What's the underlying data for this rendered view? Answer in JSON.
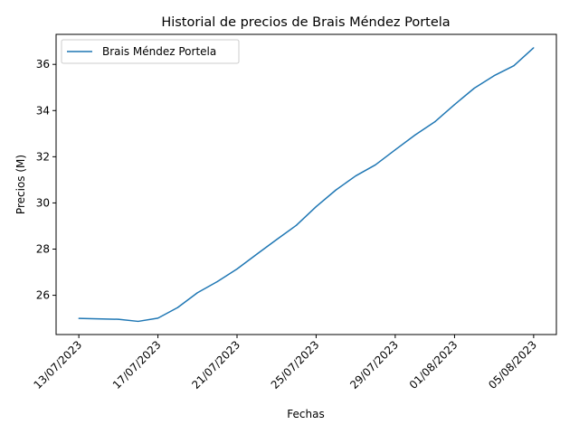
{
  "chart_data": {
    "type": "line",
    "title": "Historial de precios de Brais Méndez Portela",
    "xlabel": "Fechas",
    "ylabel": "Precios (M)",
    "x_tick_labels": [
      "13/07/2023",
      "17/07/2023",
      "21/07/2023",
      "25/07/2023",
      "29/07/2023",
      "01/08/2023",
      "05/08/2023"
    ],
    "x_ticks": [
      "2023-07-13",
      "2023-07-17",
      "2023-07-21",
      "2023-07-25",
      "2023-07-29",
      "2023-08-01",
      "2023-08-05"
    ],
    "y_ticks": [
      26,
      28,
      30,
      32,
      34,
      36
    ],
    "ylim": [
      24.3,
      37.3
    ],
    "grid": false,
    "legend_position": "top-left",
    "color": "#1f77b4",
    "series": [
      {
        "name": "Brais Méndez Portela",
        "x": [
          "2023-07-13",
          "2023-07-15",
          "2023-07-16",
          "2023-07-17",
          "2023-07-18",
          "2023-07-19",
          "2023-07-20",
          "2023-07-21",
          "2023-07-22",
          "2023-07-23",
          "2023-07-24",
          "2023-07-25",
          "2023-07-26",
          "2023-07-27",
          "2023-07-28",
          "2023-07-29",
          "2023-07-30",
          "2023-07-31",
          "2023-08-01",
          "2023-08-02",
          "2023-08-03",
          "2023-08-04",
          "2023-08-05"
        ],
        "values": [
          25.0,
          24.96,
          24.87,
          25.01,
          25.47,
          26.11,
          26.59,
          27.14,
          27.78,
          28.41,
          29.03,
          29.84,
          30.56,
          31.17,
          31.65,
          32.3,
          32.94,
          33.51,
          34.26,
          34.97,
          35.51,
          35.94,
          36.72
        ]
      }
    ]
  }
}
